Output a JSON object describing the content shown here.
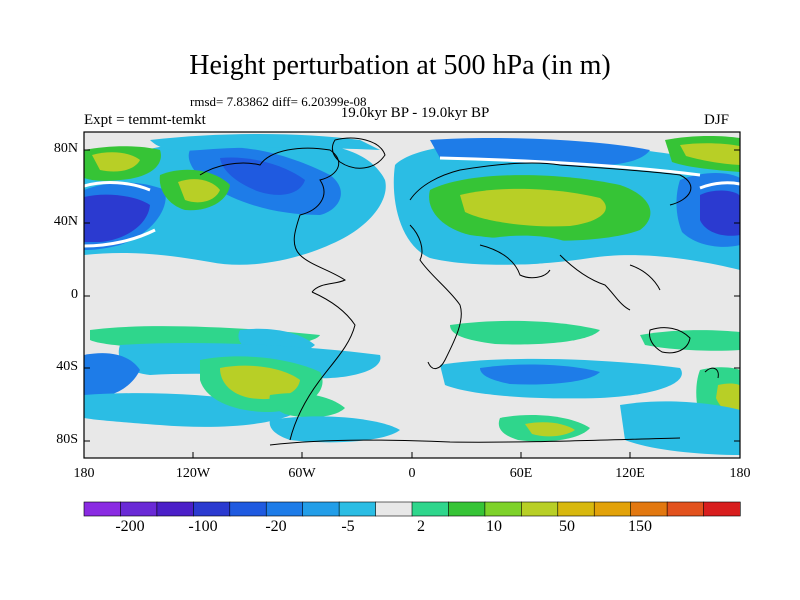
{
  "title": "Height perturbation at 500 hPa (in m)",
  "stats_text": "rmsd= 7.83862 diff= 6.20399e-08",
  "expt_text": "Expt = temmt-temkt",
  "period_text": "19.0kyr BP - 19.0kyr BP",
  "season_text": "DJF",
  "lat_ticks": [
    "80N",
    "40N",
    "0",
    "40S",
    "80S"
  ],
  "lat_values": [
    80,
    40,
    0,
    -40,
    -80
  ],
  "lon_ticks": [
    "180",
    "120W",
    "60W",
    "0",
    "60E",
    "120E",
    "180"
  ],
  "lon_values": [
    -180,
    -120,
    -60,
    0,
    60,
    120,
    180
  ],
  "colorbar": {
    "colors": [
      "#8a2be2",
      "#6a2ad6",
      "#4b1fc8",
      "#2b3ad0",
      "#1f5ae0",
      "#1e7ce8",
      "#239ee8",
      "#2bbde4",
      "#e8e8e8",
      "#2fd68c",
      "#36c436",
      "#7ed22a",
      "#b8cf26",
      "#d8b80e",
      "#e2a20a",
      "#e27810",
      "#e2521e",
      "#d81e1e"
    ],
    "labels": [
      "-200",
      "-100",
      "-20",
      "-5",
      "2",
      "10",
      "50",
      "150"
    ]
  },
  "fill_colors": {
    "neutral": "#e8e8e8",
    "light_blue": "#2bbde4",
    "mid_blue": "#1e7ce8",
    "dark_blue": "#1f5ae0",
    "deep_blue": "#2b3ad0",
    "green": "#2fd68c",
    "green2": "#36c436",
    "yellow": "#b8cf26",
    "orange": "#d8b80e"
  }
}
